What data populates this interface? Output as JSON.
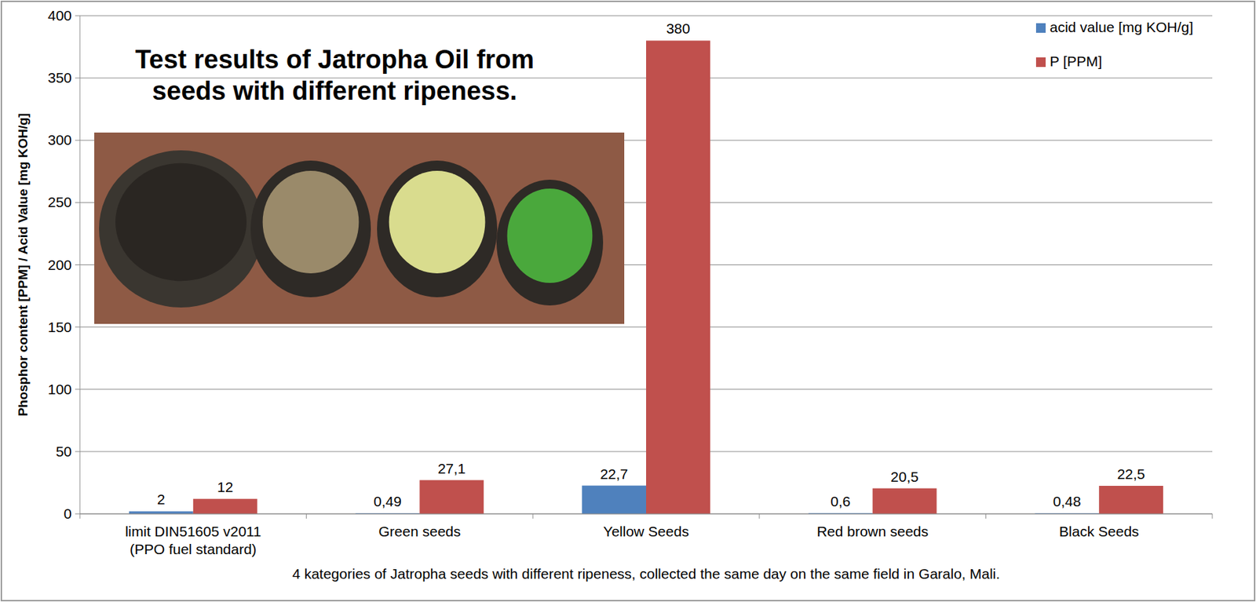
{
  "chart_data": {
    "type": "bar",
    "title": "Test results of Jatropha Oil from seeds with different ripeness.",
    "x_label": "4 kategories of Jatropha seeds with different ripeness, collected the same day on the same field in Garalo, Mali.",
    "y_label": "Phosphor content [PPM] / Acid Value [mg KOH/g]",
    "categories": [
      "limit DIN51605 v2011 (PPO fuel standard)",
      "Green seeds",
      "Yellow Seeds",
      "Red brown seeds",
      "Black Seeds"
    ],
    "series": [
      {
        "name": "acid value [mg KOH/g]",
        "color": "#4f81bd",
        "values": [
          2,
          0.49,
          22.7,
          0.6,
          0.48
        ],
        "value_labels": [
          "2",
          "0,49",
          "22,7",
          "0,6",
          "0,48"
        ]
      },
      {
        "name": "P [PPM]",
        "color": "#c0504d",
        "values": [
          12,
          27.1,
          380,
          20.5,
          22.5
        ],
        "value_labels": [
          "12",
          "27,1",
          "380",
          "20,5",
          "22,5"
        ]
      }
    ],
    "ylim": [
      0,
      400
    ],
    "yticks": [
      0,
      50,
      100,
      150,
      200,
      250,
      300,
      350,
      400
    ],
    "grid": true,
    "legend": "top-right",
    "data_labels": true
  }
}
